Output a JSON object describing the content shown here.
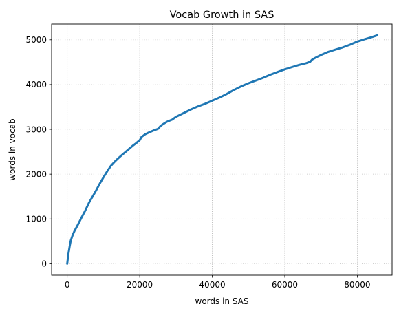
{
  "chart_data": {
    "type": "line",
    "title": "Vocab Growth in SAS",
    "xlabel": "words in SAS",
    "ylabel": "words in vocab",
    "xlim": [
      -4300,
      89600
    ],
    "ylim": [
      -255,
      5350
    ],
    "xticks": [
      0,
      20000,
      40000,
      60000,
      80000
    ],
    "xtick_labels": [
      "0",
      "20000",
      "40000",
      "60000",
      "80000"
    ],
    "yticks": [
      0,
      1000,
      2000,
      3000,
      4000,
      5000
    ],
    "ytick_labels": [
      "0",
      "1000",
      "2000",
      "3000",
      "4000",
      "5000"
    ],
    "grid": true,
    "grid_style": "dotted",
    "line_color": "#1f77b4",
    "series": [
      {
        "x": [
          0,
          300,
          700,
          1000,
          1500,
          2000,
          3000,
          4000,
          5000,
          6000,
          7000,
          8000,
          9000,
          10000,
          11000,
          12000,
          13000,
          14000,
          15000,
          16000,
          17000,
          18000,
          19000,
          20000,
          20500,
          21500,
          22500,
          24000,
          25000,
          25800,
          26300,
          27500,
          29000,
          30000,
          32000,
          34000,
          36000,
          38000,
          40000,
          42000,
          44000,
          46000,
          48000,
          50000,
          52000,
          54000,
          56000,
          58000,
          60000,
          62000,
          64000,
          66000,
          67000,
          67600,
          68500,
          70000,
          72000,
          74000,
          76000,
          78000,
          80000,
          82000,
          84000,
          85500
        ],
        "y": [
          0,
          200,
          400,
          520,
          640,
          730,
          880,
          1040,
          1190,
          1360,
          1500,
          1640,
          1790,
          1930,
          2060,
          2180,
          2270,
          2350,
          2420,
          2490,
          2560,
          2630,
          2690,
          2760,
          2830,
          2890,
          2930,
          2980,
          3010,
          3080,
          3110,
          3170,
          3220,
          3280,
          3360,
          3440,
          3510,
          3570,
          3640,
          3710,
          3790,
          3880,
          3960,
          4030,
          4090,
          4150,
          4220,
          4280,
          4340,
          4390,
          4440,
          4480,
          4510,
          4560,
          4600,
          4660,
          4730,
          4780,
          4830,
          4890,
          4960,
          5010,
          5060,
          5100
        ]
      }
    ]
  }
}
